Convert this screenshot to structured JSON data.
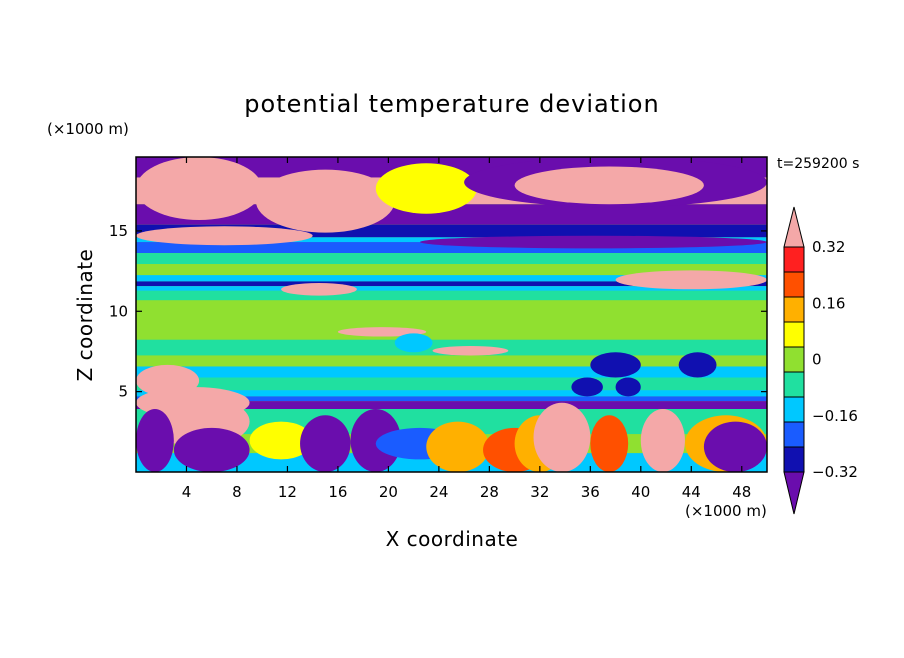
{
  "chart_data": {
    "type": "heatmap",
    "title": "potential temperature deviation",
    "xlabel": "X coordinate",
    "ylabel": "Z coordinate",
    "x_unit": "(×1000 m)",
    "y_unit": "(×1000 m)",
    "time_label": "t=259200 s",
    "xlim": [
      0,
      50
    ],
    "ylim": [
      0,
      19.6
    ],
    "x_ticks": [
      4,
      8,
      12,
      16,
      20,
      24,
      28,
      32,
      36,
      40,
      44,
      48
    ],
    "y_ticks": [
      5,
      10,
      15
    ],
    "colorbar": {
      "labels": [
        "0.32",
        "0.16",
        "0",
        "−0.16",
        "−0.32"
      ],
      "label_levels": [
        0.32,
        0.16,
        0,
        -0.16,
        -0.32
      ],
      "levels": [
        -0.4,
        -0.32,
        -0.24,
        -0.16,
        -0.08,
        0,
        0.08,
        0.16,
        0.24,
        0.32,
        0.4
      ],
      "colors": [
        "#6a0dad",
        "#1010b0",
        "#1a5cff",
        "#00c8ff",
        "#20e0a0",
        "#90e030",
        "#ffff00",
        "#ffb000",
        "#ff5000",
        "#ff2020",
        "#f4a8a8"
      ],
      "extend": "both"
    },
    "colormap": [
      "#6a0dad",
      "#1010b0",
      "#1a5cff",
      "#00c8ff",
      "#20e0a0",
      "#90e030",
      "#ffff00",
      "#ffb000",
      "#ff5000",
      "#ff2020",
      "#f4a8a8"
    ]
  }
}
